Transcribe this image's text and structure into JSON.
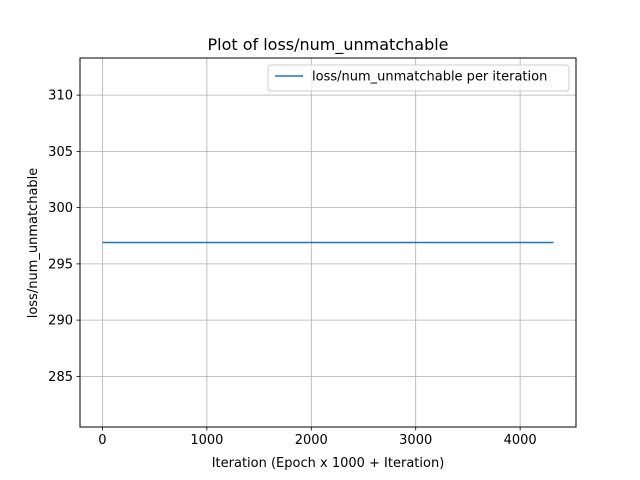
{
  "chart_data": {
    "type": "line",
    "title": "Plot of loss/num_unmatchable",
    "xlabel": "Iteration (Epoch x 1000 + Iteration)",
    "ylabel": "loss/num_unmatchable",
    "xlim": [
      -215,
      4535
    ],
    "ylim": [
      280.5,
      313.3
    ],
    "xticks": [
      0,
      1000,
      2000,
      3000,
      4000
    ],
    "yticks": [
      285,
      290,
      295,
      300,
      305,
      310
    ],
    "grid": true,
    "legend_position": "upper right",
    "series": [
      {
        "name": "loss/num_unmatchable per iteration",
        "color": "#1f77b4",
        "x": [
          0,
          4320
        ],
        "y": [
          296.9,
          296.9
        ]
      }
    ]
  }
}
